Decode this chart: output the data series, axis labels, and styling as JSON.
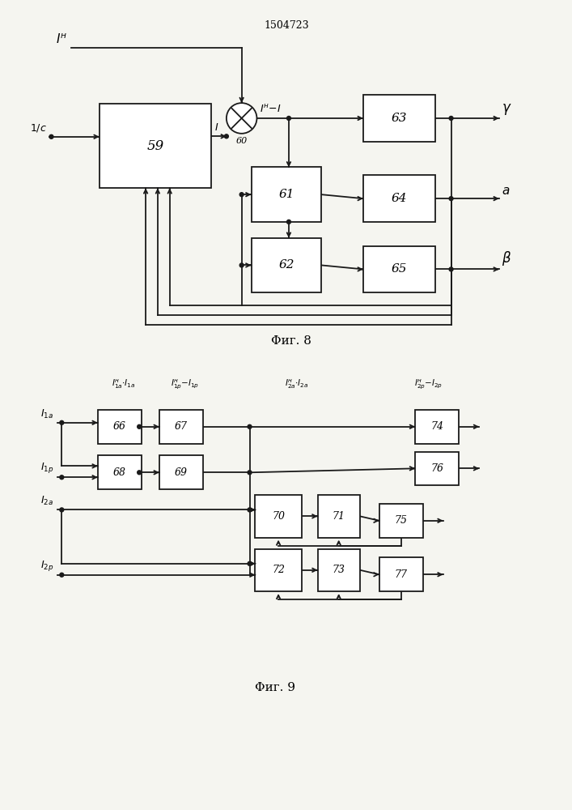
{
  "title": "1504723",
  "bg_color": "#f5f5f0",
  "line_color": "#1a1a1a",
  "fig8_caption": "Φиг. 8",
  "fig9_caption": "Φиг. 9"
}
